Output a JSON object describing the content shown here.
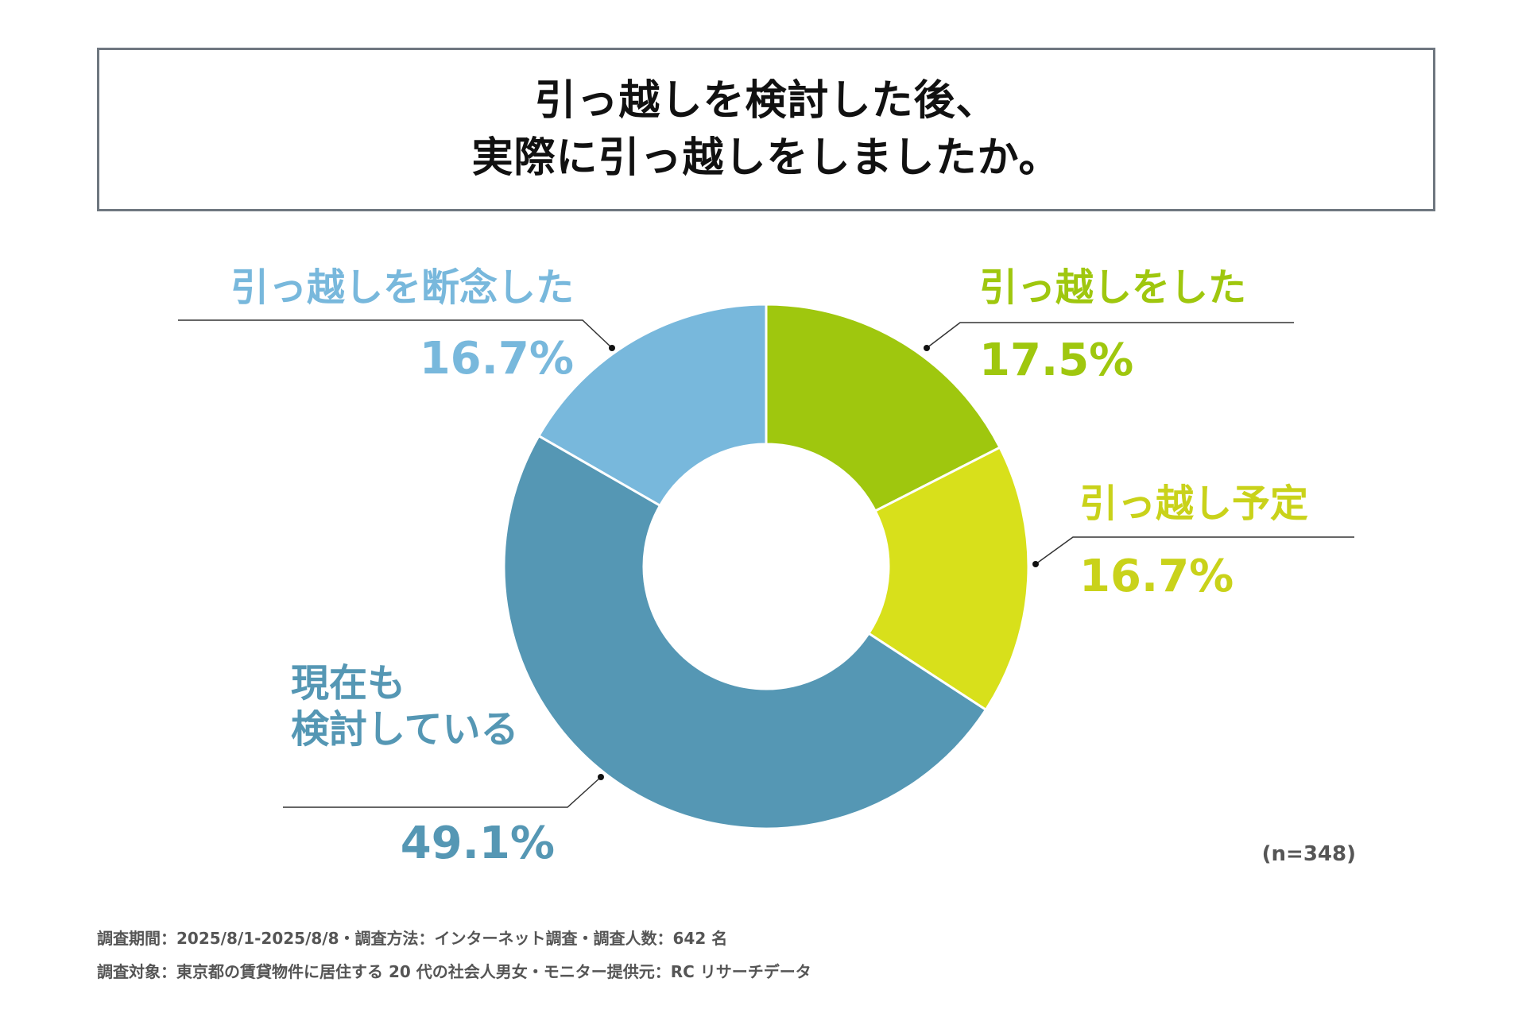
{
  "title": {
    "line1": "引っ越しを検討した後、",
    "line2": "実際に引っ越しをしましたか。"
  },
  "chart_data": {
    "type": "pie",
    "donut": true,
    "slices": [
      {
        "label": "引っ越しをした",
        "value": 17.5,
        "value_label": "17.5%",
        "color": "#9fc70e"
      },
      {
        "label": "引っ越し予定",
        "value": 16.7,
        "value_label": "16.7%",
        "color": "#d8e01b"
      },
      {
        "label": "現在も\n検討している",
        "value": 49.1,
        "value_label": "49.1%",
        "color": "#5597b4"
      },
      {
        "label": "引っ越しを断念した",
        "value": 16.7,
        "value_label": "16.7%",
        "color": "#78b8dc"
      }
    ],
    "note": "(n=348)"
  },
  "footer": {
    "line1": "調査期間：2025/8/1-2025/8/8・調査方法：インターネット調査・調査人数：642 名",
    "line2": "調査対象：東京都の賃貸物件に居住する 20 代の社会人男女・モニター提供元：RC リサーチデータ"
  }
}
